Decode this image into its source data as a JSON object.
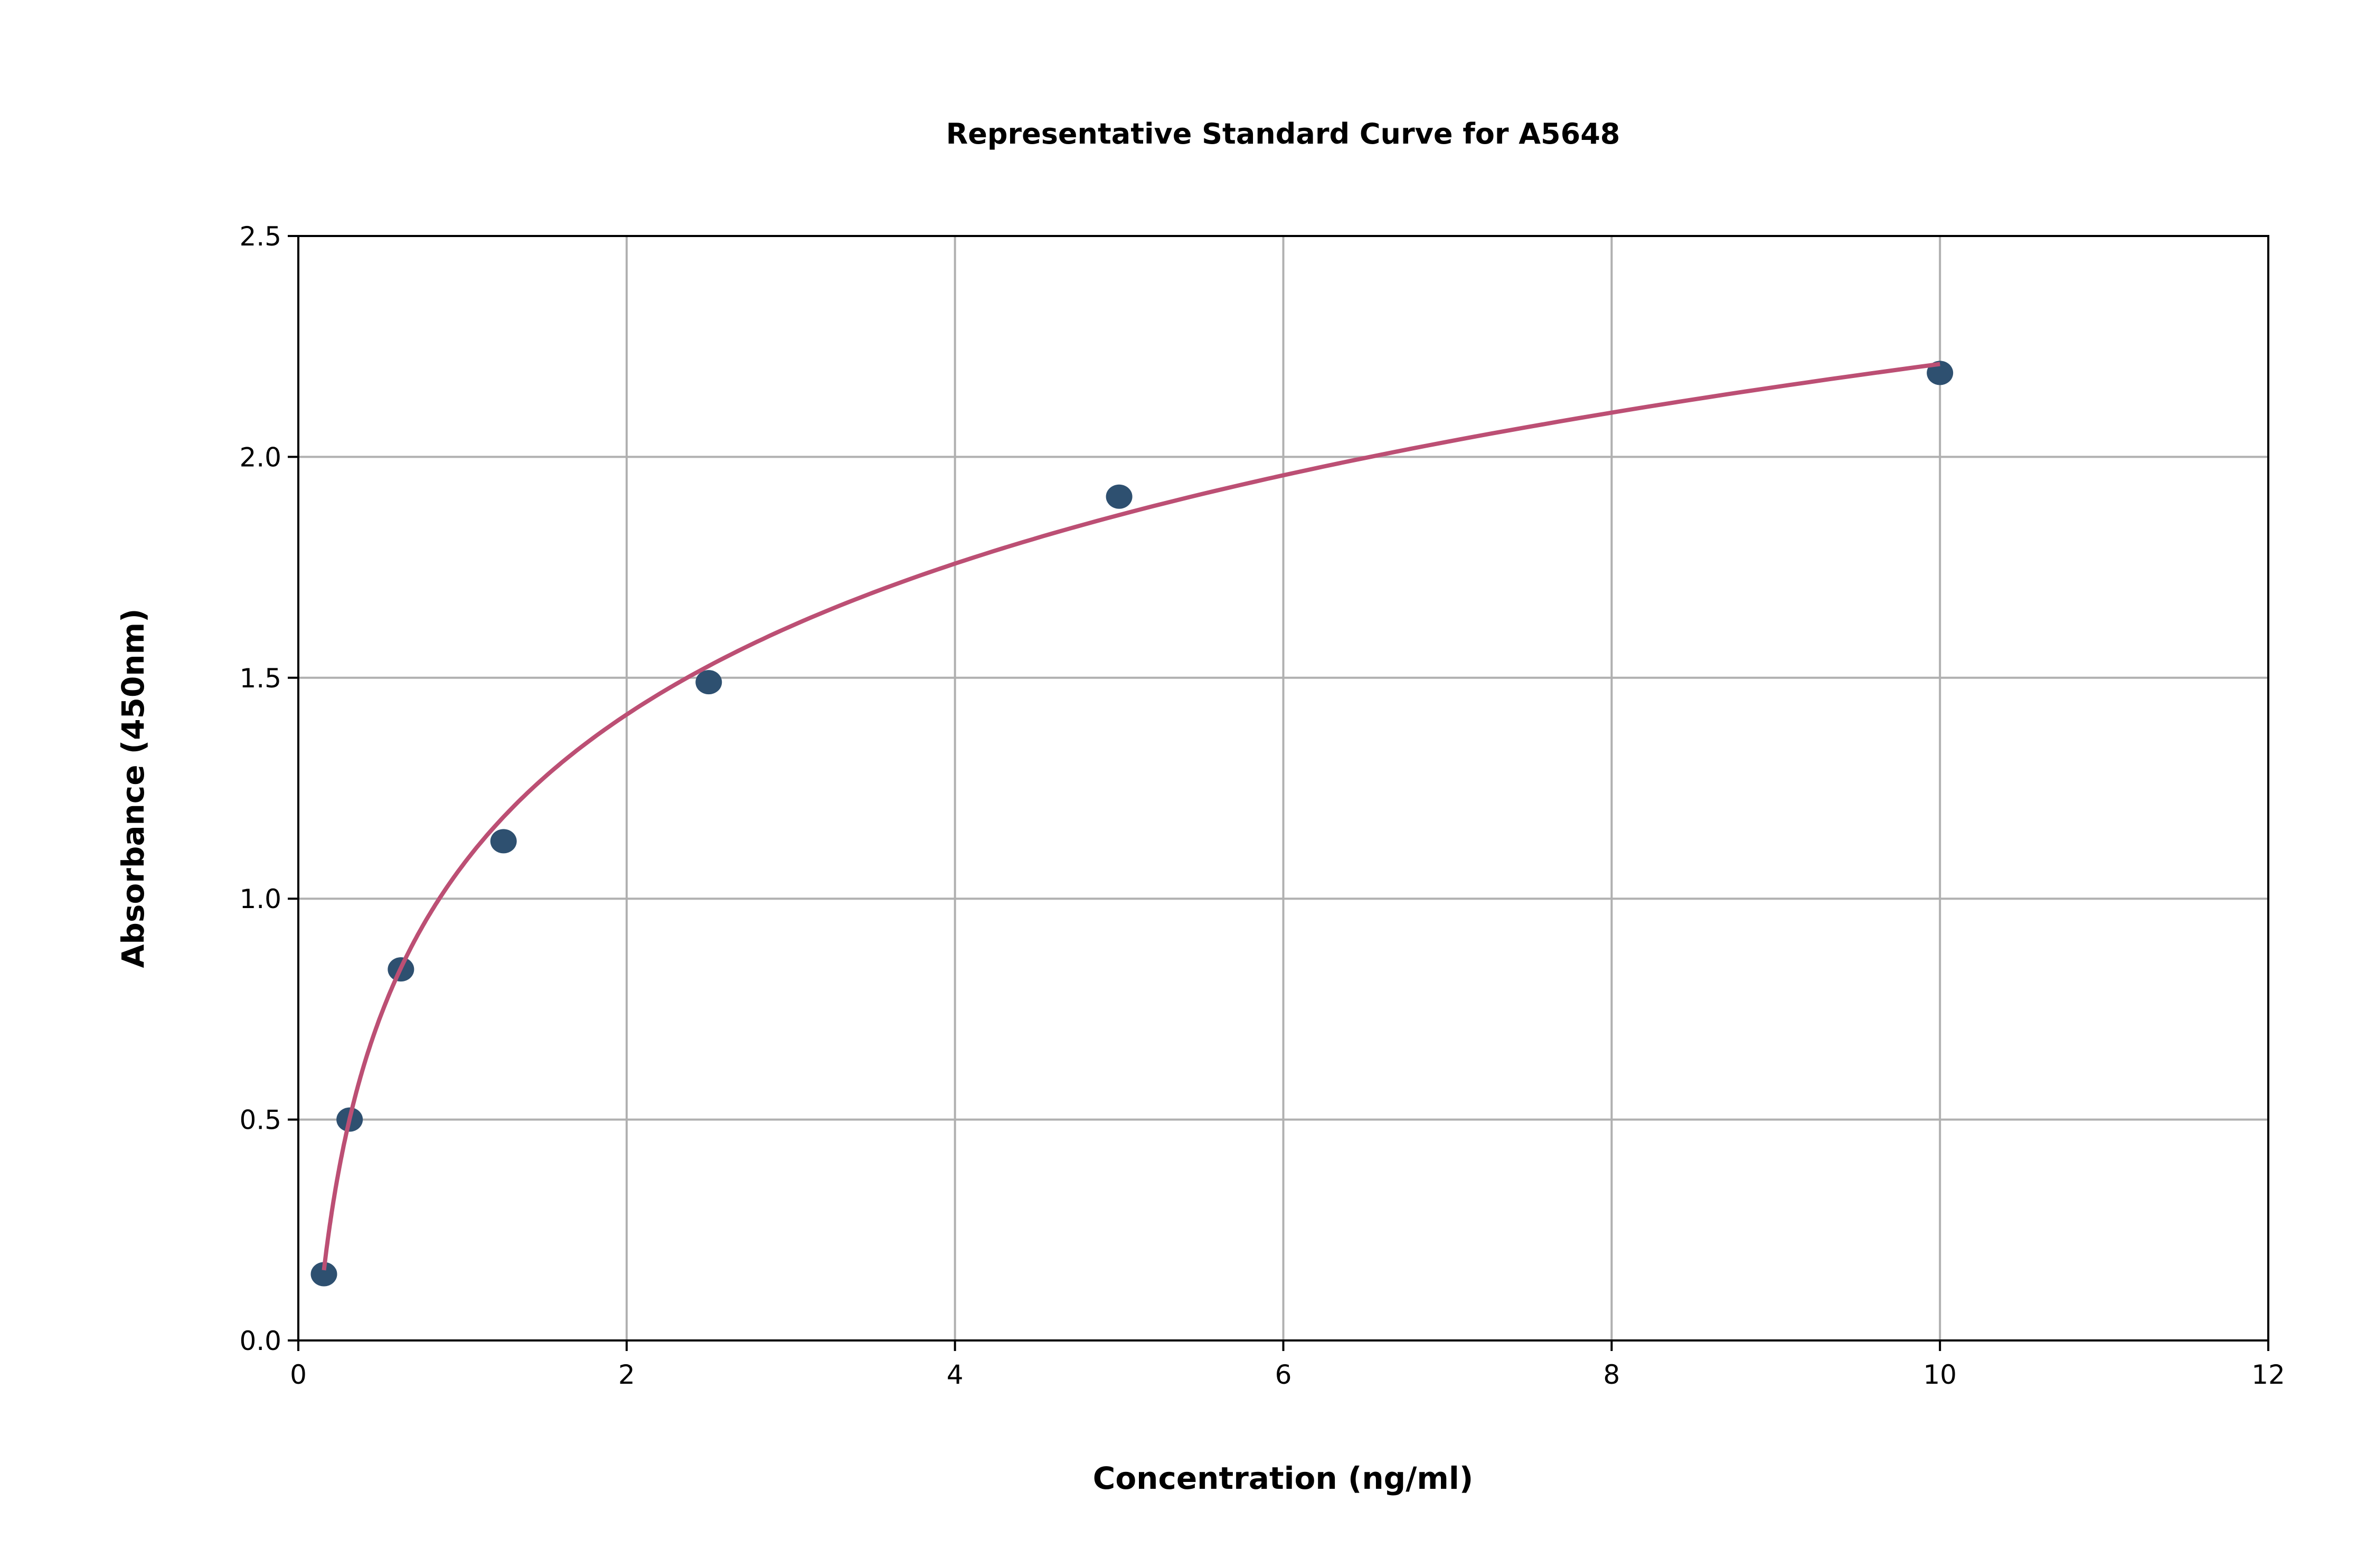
{
  "chart_data": {
    "type": "scatter",
    "title": "Representative Standard Curve for A5648",
    "xlabel": "Concentration (ng/ml)",
    "ylabel": "Absorbance (450nm)",
    "xlim": [
      0,
      12
    ],
    "ylim": [
      0,
      2.5
    ],
    "xticks": [
      "0",
      "2",
      "4",
      "6",
      "8",
      "10",
      "12"
    ],
    "yticks": [
      "0.0",
      "0.5",
      "1.0",
      "1.5",
      "2.0",
      "2.5"
    ],
    "grid": true,
    "points": {
      "x": [
        0.156,
        0.3125,
        0.625,
        1.25,
        2.5,
        5,
        10
      ],
      "y": [
        0.15,
        0.5,
        0.84,
        1.13,
        1.49,
        1.91,
        2.19
      ]
    },
    "fit_curve": "logarithmic fit",
    "colors": {
      "points": "#2e5070",
      "curve": "#bc4f74",
      "grid": "#b0b0b0"
    }
  }
}
